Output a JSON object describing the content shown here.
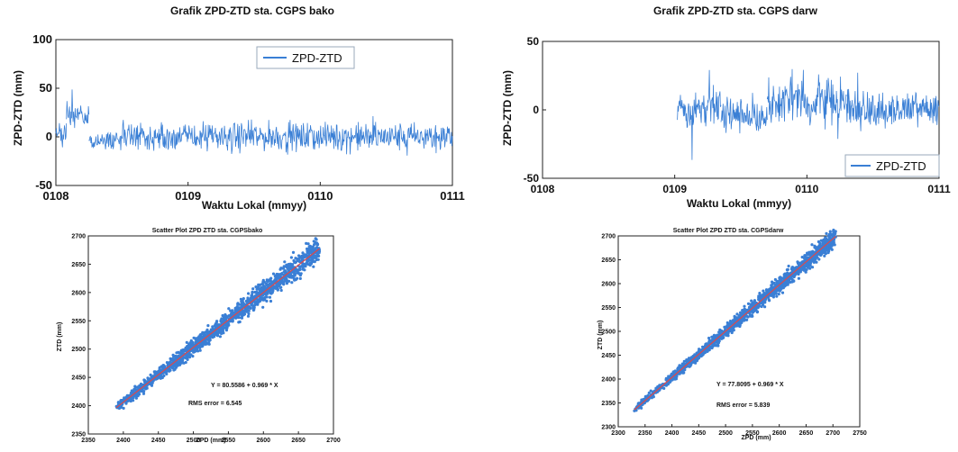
{
  "chart_data": [
    {
      "type": "line",
      "title": "Grafik ZPD-ZTD sta. CGPS bako",
      "xlabel": "Waktu Lokal (mmyy)",
      "ylabel": "ZPD-ZTD (mm)",
      "x_ticks": [
        "0108",
        "0109",
        "0110",
        "0111"
      ],
      "y_ticks": [
        "-50",
        "0",
        "50",
        "100"
      ],
      "ylim": [
        -50,
        100
      ],
      "xlim": [
        0,
        3
      ],
      "legend": "top-center",
      "grid": false,
      "series": [
        {
          "name": "ZPD-ZTD",
          "color": "#3a7fd5",
          "segments": [
            {
              "start": 0.0,
              "end": 0.08,
              "mean": 4,
              "amp": 9
            },
            {
              "start": 0.08,
              "end": 0.25,
              "mean": 22,
              "amp": 10
            },
            {
              "start": 0.25,
              "end": 0.41,
              "mean": -4,
              "amp": 7
            },
            {
              "start": 0.41,
              "end": 3.0,
              "mean": 0,
              "amp": 11
            }
          ]
        }
      ]
    },
    {
      "type": "line",
      "title": "Grafik ZPD-ZTD sta. CGPS darw",
      "xlabel": "Waktu Lokal (mmyy)",
      "ylabel": "ZPD-ZTD (mm)",
      "x_ticks": [
        "0108",
        "0109",
        "0110",
        "0111"
      ],
      "y_ticks": [
        "-50",
        "0",
        "50"
      ],
      "ylim": [
        -50,
        50
      ],
      "xlim": [
        0,
        3
      ],
      "legend": "bottom-right",
      "grid": false,
      "series": [
        {
          "name": "ZPD-ZTD",
          "color": "#3a7fd5",
          "segments": [
            {
              "start": 1.02,
              "end": 1.35,
              "mean": 2,
              "amp": 11
            },
            {
              "start": 1.35,
              "end": 1.7,
              "mean": -3,
              "amp": 9
            },
            {
              "start": 1.7,
              "end": 2.3,
              "mean": 6,
              "amp": 14
            },
            {
              "start": 2.3,
              "end": 3.0,
              "mean": 0,
              "amp": 10
            }
          ]
        }
      ]
    },
    {
      "type": "scatter",
      "title": "Scatter Plot ZPD ZTD sta. CGPSbako",
      "xlabel": "ZPD (mm)",
      "ylabel": "ZTD (mm)",
      "xlim": [
        2350,
        2700
      ],
      "ylim": [
        2350,
        2700
      ],
      "x_ticks": [
        "2350",
        "2400",
        "2450",
        "2500",
        "2550",
        "2600",
        "2650",
        "2700"
      ],
      "y_ticks": [
        "2350",
        "2400",
        "2450",
        "2500",
        "2550",
        "2600",
        "2650",
        "2700"
      ],
      "range": [
        2390,
        2680
      ],
      "spread": 9,
      "fit": {
        "intercept": 80.5586,
        "slope": 0.969
      },
      "equation": "Y = 80.5586 + 0.969 * X",
      "rms": "RMS error = 6.545",
      "point_color": "#3a7fd5",
      "fit_color": "#e04848"
    },
    {
      "type": "scatter",
      "title": "Scatter Plot ZPD ZTD sta. CGPSdarw",
      "xlabel": "ZPD (mm)",
      "ylabel": "ZTD (mm)",
      "xlim": [
        2300,
        2750
      ],
      "ylim": [
        2300,
        2700
      ],
      "x_ticks": [
        "2300",
        "2350",
        "2400",
        "2450",
        "2500",
        "2550",
        "2600",
        "2650",
        "2700",
        "2750"
      ],
      "y_ticks": [
        "2300",
        "2350",
        "2400",
        "2450",
        "2500",
        "2550",
        "2600",
        "2650",
        "2700"
      ],
      "range": [
        2330,
        2705
      ],
      "spread": 8,
      "fit": {
        "intercept": 77.8095,
        "slope": 0.969
      },
      "equation": "Y = 77.8095 + 0.969 * X",
      "rms": "RMS error = 5.839",
      "point_color": "#3a7fd5",
      "fit_color": "#e04848"
    }
  ]
}
